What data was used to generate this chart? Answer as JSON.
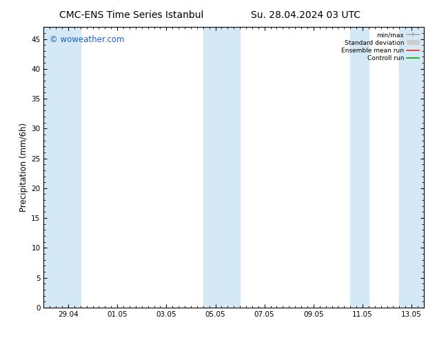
{
  "title_left": "CMC-ENS Time Series Istanbul",
  "title_right": "Su. 28.04.2024 03 UTC",
  "ylabel": "Precipitation (mm/6h)",
  "watermark": "© woweather.com",
  "watermark_color": "#1a5fcc",
  "background_color": "#ffffff",
  "plot_bg_color": "#ffffff",
  "ylim": [
    0,
    47
  ],
  "yticks": [
    0,
    5,
    10,
    15,
    20,
    25,
    30,
    35,
    40,
    45
  ],
  "xtick_labels": [
    "29.04",
    "01.05",
    "03.05",
    "05.05",
    "07.05",
    "09.05",
    "11.05",
    "13.05"
  ],
  "xtick_positions": [
    1,
    3,
    5,
    7,
    9,
    11,
    13,
    15
  ],
  "legend_labels": [
    "min/max",
    "Standard deviation",
    "Ensemble mean run",
    "Controll run"
  ],
  "shade_color": "#d5e8f5",
  "bands": [
    [
      0.0,
      1.5
    ],
    [
      6.5,
      8.0
    ],
    [
      12.5,
      13.25
    ],
    [
      14.5,
      15.5
    ]
  ],
  "xmin": 0.0,
  "xmax": 15.5,
  "tick_fontsize": 7.5,
  "label_fontsize": 8.5,
  "title_fontsize": 10,
  "watermark_fontsize": 8.5
}
